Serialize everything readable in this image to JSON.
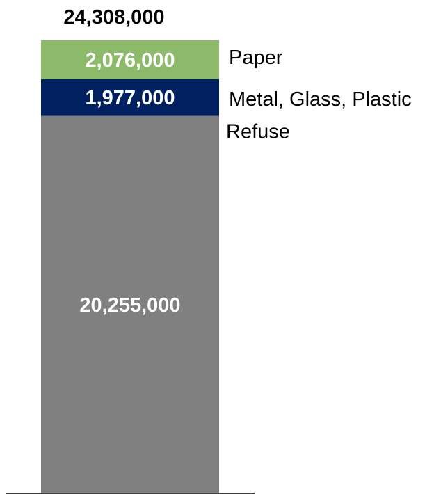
{
  "chart_data": {
    "type": "bar",
    "stacked": true,
    "categories": [
      ""
    ],
    "total": 24308000,
    "total_label": "24,308,000",
    "series": [
      {
        "name": "Refuse",
        "values": [
          20255000
        ],
        "value_label": "20,255,000",
        "color": "#808080"
      },
      {
        "name": "Metal, Glass, Plastic",
        "values": [
          1977000
        ],
        "value_label": "1,977,000",
        "color": "#002060"
      },
      {
        "name": "Paper",
        "values": [
          2076000
        ],
        "value_label": "2,076,000",
        "color": "#8db96b"
      }
    ],
    "title": "",
    "xlabel": "",
    "ylabel": "",
    "ylim": [
      0,
      24308000
    ],
    "grid": false,
    "legend": "right-of-bar labels"
  }
}
